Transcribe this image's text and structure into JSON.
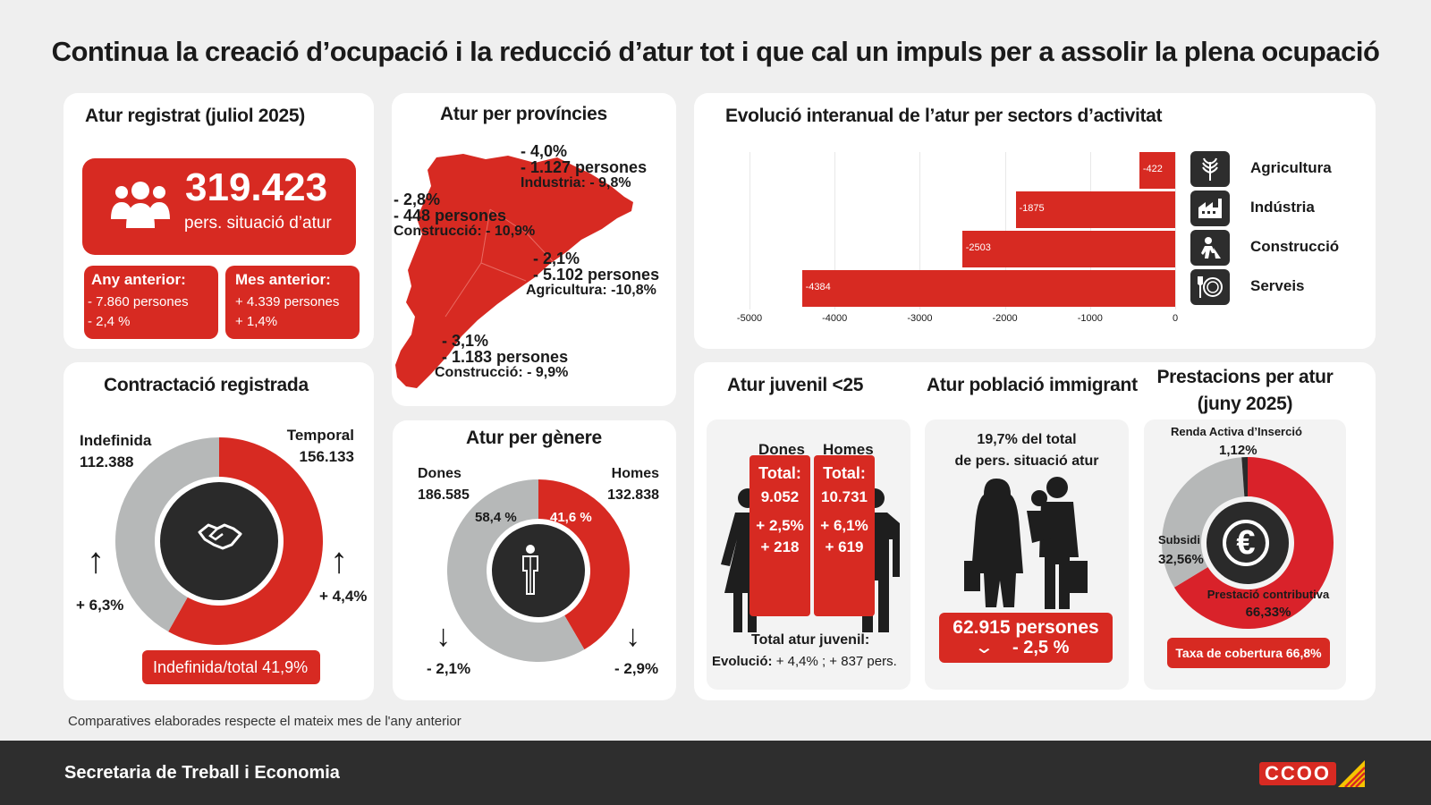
{
  "title": "Continua la creació d’ocupació i la reducció d’atur tot i que cal un impuls per a assolir la plena ocupació",
  "atur": {
    "heading": "Atur registrat (juliol 2025)",
    "total": "319.423",
    "total_label": "pers. situació d’atur",
    "any_anterior": {
      "label": "Any anterior:",
      "line1": "- 7.860 persones",
      "line2": "- 2,4 %"
    },
    "mes_anterior": {
      "label": "Mes anterior:",
      "line1": "+ 4.339 persones",
      "line2": "+ 1,4%"
    }
  },
  "provincies": {
    "heading": "Atur per províncies",
    "girona": {
      "pct": "- 4,0%",
      "persones": "- 1.127 persones",
      "sector": "Industria: - 9,8%"
    },
    "barcelona": {
      "pct": "- 2,8%",
      "persones": "- 448 persones",
      "sector": "Construcció: - 10,9%"
    },
    "lleida": {
      "pct": "- 2,1%",
      "persones": "- 5.102 persones",
      "sector": "Agricultura: -10,8%"
    },
    "tarragona": {
      "pct": "- 3,1%",
      "persones": "- 1.183 persones",
      "sector": "Construcció: - 9,9%"
    }
  },
  "sectors": {
    "heading": "Evolució interanual de l’atur per sectors d’activitat",
    "items": [
      {
        "name": "Agricultura",
        "value": -422,
        "label": "-422",
        "icon": "wheat-icon"
      },
      {
        "name": "Indústria",
        "value": -1875,
        "label": "-1875",
        "icon": "factory-icon"
      },
      {
        "name": "Construcció",
        "value": -2503,
        "label": "-2503",
        "icon": "construction-worker-icon"
      },
      {
        "name": "Serveis",
        "value": -4384,
        "label": "-4384",
        "icon": "restaurant-icon"
      }
    ],
    "ticks": [
      "-5000",
      "-4000",
      "-3000",
      "-2000",
      "-1000",
      "0"
    ]
  },
  "contractacio": {
    "heading": "Contractació registrada",
    "indefinida": {
      "label": "Indefinida",
      "value": "112.388",
      "count": 112388,
      "change": "+ 6,3%"
    },
    "temporal": {
      "label": "Temporal",
      "value": "156.133",
      "count": 156133,
      "change": "+ 4,4%"
    },
    "ratio_label": "Indefinida/total  41,9%",
    "colors": {
      "indefinida": "#b6b8b8",
      "temporal": "#d72a22"
    }
  },
  "genere": {
    "heading": "Atur per gènere",
    "dones": {
      "label": "Dones",
      "value": "186.585",
      "pct": "58,4 %",
      "pct_value": 58.4,
      "change": "- 2,1%"
    },
    "homes": {
      "label": "Homes",
      "value": "132.838",
      "pct": "41,6 %",
      "pct_value": 41.6,
      "change": "- 2,9%"
    }
  },
  "juvenil": {
    "heading": "Atur juvenil <25",
    "dones": {
      "label": "Dones",
      "total_label": "Total:",
      "total": "9.052",
      "pct": "+ 2,5%",
      "abs": "+ 218"
    },
    "homes": {
      "label": "Homes",
      "total_label": "Total:",
      "total": "10.731",
      "pct": "+ 6,1%",
      "abs": "+ 619"
    },
    "summary_title": "Total atur juvenil:",
    "summary_label": "Evolució:",
    "summary_value": "+ 4,4% ;  + 837 pers."
  },
  "immigrant": {
    "heading": "Atur població immigrant",
    "line1": "19,7% del total",
    "line2": "de pers. situació atur",
    "persones": "62.915 persones",
    "change": "- 2,5 %"
  },
  "prestacions": {
    "heading_line1": "Prestacions per atur",
    "heading_line2": "(juny 2025)",
    "renda": {
      "label": "Renda Activa d’Inserció",
      "pct": "1,12%",
      "value": 1.12
    },
    "subsidi": {
      "label": "Subsidi",
      "pct": "32,56%",
      "value": 32.56
    },
    "contributiva": {
      "label": "Prestació contributiva",
      "pct": "66,33%",
      "value": 66.33
    },
    "cobertura": "Taxa de cobertura 66,8%",
    "colors": {
      "renda": "#2a2a2a",
      "subsidi": "#b6b8b8",
      "contributiva": "#d9222a"
    }
  },
  "note": "Comparatives elaborades respecte el mateix mes de l'any anterior",
  "footer": {
    "org": "Secretaria de Treball i Economia",
    "logo": "CCOO"
  }
}
